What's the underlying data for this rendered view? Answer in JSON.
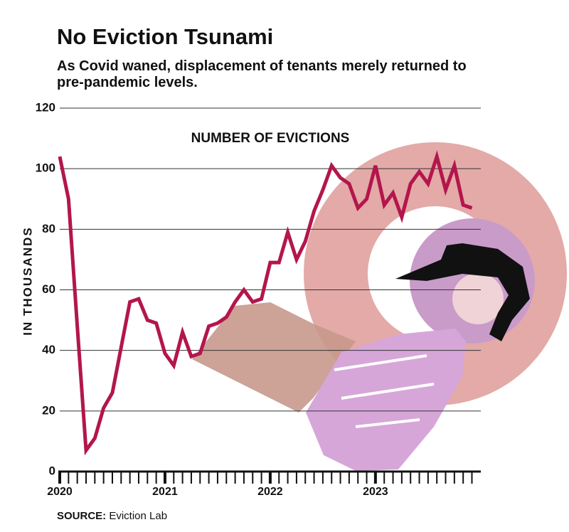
{
  "chart_data": {
    "type": "line",
    "title": "No Eviction Tsunami",
    "subtitle": "As Covid waned, displacement of tenants merely returned to pre-pandemic levels.",
    "series_label": "NUMBER OF EVICTIONS",
    "ylabel": "IN THOUSANDS",
    "source": {
      "label": "SOURCE:",
      "text": "Eviction Lab"
    },
    "categories": [
      "2020",
      null,
      null,
      null,
      null,
      null,
      null,
      null,
      null,
      null,
      null,
      null,
      "2021",
      null,
      null,
      null,
      null,
      null,
      null,
      null,
      null,
      null,
      null,
      null,
      "2022",
      null,
      null,
      null,
      null,
      null,
      null,
      null,
      null,
      null,
      null,
      null,
      "2023",
      null,
      null,
      null,
      null,
      null,
      null,
      null,
      null,
      null,
      null,
      null
    ],
    "values": [
      104,
      90,
      48,
      7,
      11,
      21,
      26,
      41,
      56,
      57,
      50,
      49,
      39,
      35,
      46,
      38,
      39,
      48,
      49,
      51,
      56,
      60,
      56,
      57,
      69,
      69,
      79,
      70,
      76,
      86,
      93,
      101,
      97,
      95,
      87,
      90,
      101,
      88,
      92,
      84,
      95,
      99,
      95,
      104,
      93,
      101,
      88,
      87
    ],
    "color": "#b3164c",
    "ylim": [
      0,
      120
    ],
    "yticks": [
      0,
      20,
      40,
      60,
      80,
      100,
      120
    ],
    "grid": true
  }
}
